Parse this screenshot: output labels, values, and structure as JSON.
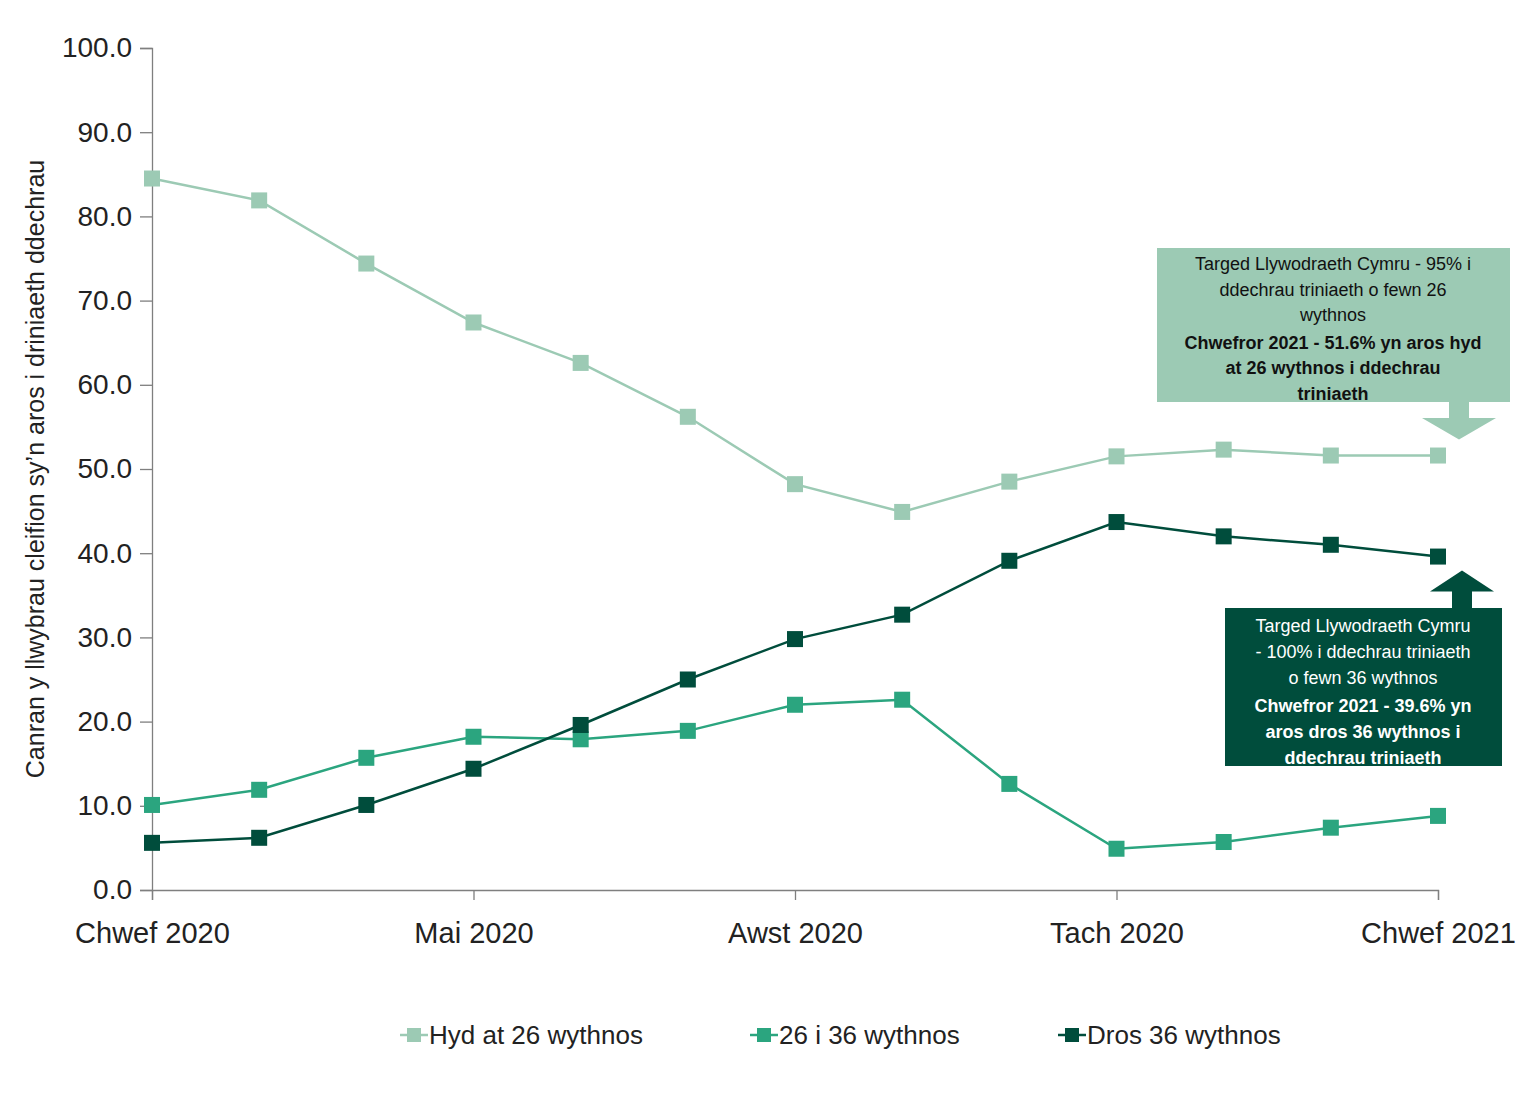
{
  "chart_data": {
    "type": "line",
    "y_label": "Canran y llwybrau cleifion sy’n aros i driniaeth ddechrau",
    "categories": [
      "Chwef 2020",
      null,
      null,
      "Mai 2020",
      null,
      null,
      "Awst 2020",
      null,
      null,
      "Tach 2020",
      null,
      null,
      "Chwef 2021"
    ],
    "series": [
      {
        "name": "Hyd at 26 wythnos",
        "color": "#9ccab4",
        "marker": "square",
        "values": [
          84.5,
          81.9,
          74.4,
          67.4,
          62.6,
          56.2,
          48.2,
          44.9,
          48.5,
          51.5,
          52.3,
          51.6,
          51.6
        ]
      },
      {
        "name": "26 i 36 wythnos",
        "color": "#2ba57f",
        "marker": "square",
        "values": [
          10.1,
          11.9,
          15.7,
          18.2,
          17.9,
          18.9,
          22.0,
          22.6,
          12.6,
          4.9,
          5.7,
          7.4,
          8.8
        ]
      },
      {
        "name": "Dros 36 wythnos",
        "color": "#004d3c",
        "marker": "square",
        "values": [
          5.6,
          6.2,
          10.1,
          14.4,
          19.6,
          25.0,
          29.8,
          32.7,
          39.1,
          43.7,
          42.0,
          41.0,
          39.6
        ]
      }
    ],
    "ylim": [
      0,
      100
    ],
    "yticks": [
      {
        "value": 0,
        "label": "0.0"
      },
      {
        "value": 10,
        "label": "10.0"
      },
      {
        "value": 20,
        "label": "20.0"
      },
      {
        "value": 30,
        "label": "30.0"
      },
      {
        "value": 40,
        "label": "40.0"
      },
      {
        "value": 50,
        "label": "50.0"
      },
      {
        "value": 60,
        "label": "60.0"
      },
      {
        "value": 70,
        "label": "70.0"
      },
      {
        "value": 80,
        "label": "80.0"
      },
      {
        "value": 90,
        "label": "90.0"
      },
      {
        "value": 100,
        "label": "100.0"
      }
    ],
    "grid": false,
    "legend": "bottom",
    "annotations": [
      {
        "color": "#9ccab4",
        "lines": [
          "Targed Llywodraeth Cymru - 95% i",
          "ddechrau triniaeth o fewn 26",
          "wythnos"
        ],
        "bold_lines": [
          "Chwefror 2021 - 51.6% yn aros hyd",
          "at 26 wythnos i ddechrau",
          "triniaeth"
        ]
      },
      {
        "color": "#004d3c",
        "lines": [
          "Targed Llywodraeth Cymru",
          "- 100% i ddechrau triniaeth",
          "o fewn 36 wythnos"
        ],
        "bold_lines": [
          "Chwefror 2021 - 39.6% yn",
          "aros dros 36 wythnos i",
          "ddechrau triniaeth"
        ]
      }
    ]
  }
}
